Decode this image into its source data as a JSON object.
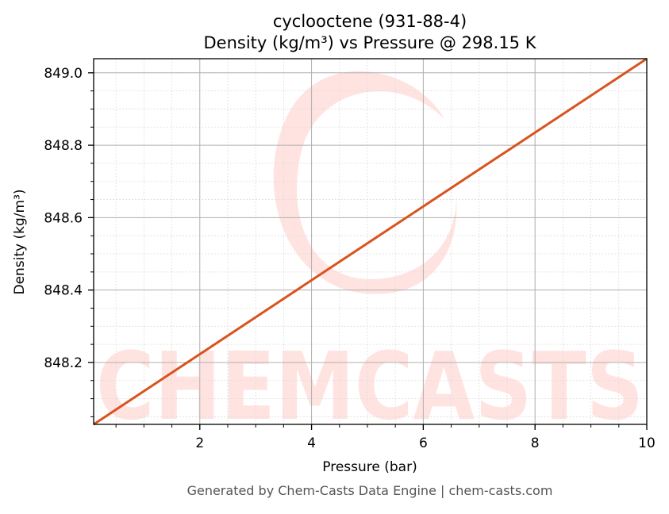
{
  "chart_data": {
    "type": "line",
    "title": "cyclooctene (931-88-4)",
    "subtitle": "Density (kg/m³) vs Pressure @ 298.15 K",
    "xlabel": "Pressure (bar)",
    "ylabel": "Density (kg/m³)",
    "xlim": [
      0.1,
      10
    ],
    "ylim": [
      848.029,
      849.039
    ],
    "x_ticks": [
      2,
      4,
      6,
      8,
      10
    ],
    "x_tick_labels": [
      "2",
      "4",
      "6",
      "8",
      "10"
    ],
    "y_ticks": [
      848.2,
      848.4,
      848.6,
      848.8,
      849.0
    ],
    "y_tick_labels": [
      "848.2",
      "848.4",
      "848.6",
      "848.8",
      "849.0"
    ],
    "x_minor_step": 0.5,
    "y_minor_step": 0.05,
    "grid": true,
    "legend": null,
    "series": [
      {
        "name": "Density",
        "color": "#d9531e",
        "x": [
          0.1,
          2,
          4,
          6,
          8,
          10
        ],
        "y": [
          848.029,
          848.223,
          848.427,
          848.631,
          848.835,
          849.039
        ]
      }
    ]
  },
  "footer": "Generated by Chem-Casts Data Engine | chem-casts.com",
  "watermark": {
    "text": "CHEMCASTS",
    "color": "#ffe3e0"
  },
  "colors": {
    "line": "#d9531e",
    "major_grid": "#b0b0b0",
    "minor_grid": "#dddddd",
    "axis": "#000000",
    "footer": "#555555"
  }
}
